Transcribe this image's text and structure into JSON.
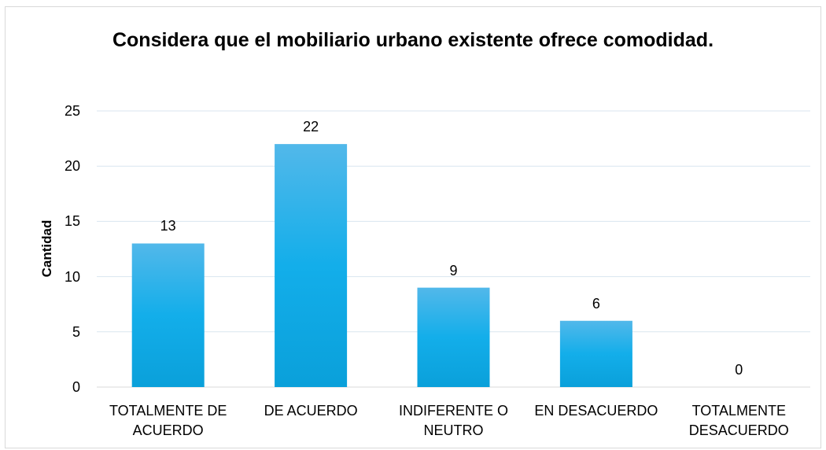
{
  "chart_data": {
    "type": "bar",
    "title": "Considera que el mobiliario urbano existente ofrece comodidad.",
    "y_label": "Cantidad",
    "categories": [
      "TOTALMENTE DE ACUERDO",
      "DE ACUERDO",
      "INDIFERENTE O NEUTRO",
      "EN DESACUERDO",
      "TOTALMENTE DESACUERDO"
    ],
    "values": [
      13,
      22,
      9,
      6,
      0
    ],
    "color": "#1aaee6",
    "ylim": [
      0,
      25
    ],
    "yticks": [
      0,
      5,
      10,
      15,
      20,
      25
    ],
    "grid": true
  }
}
